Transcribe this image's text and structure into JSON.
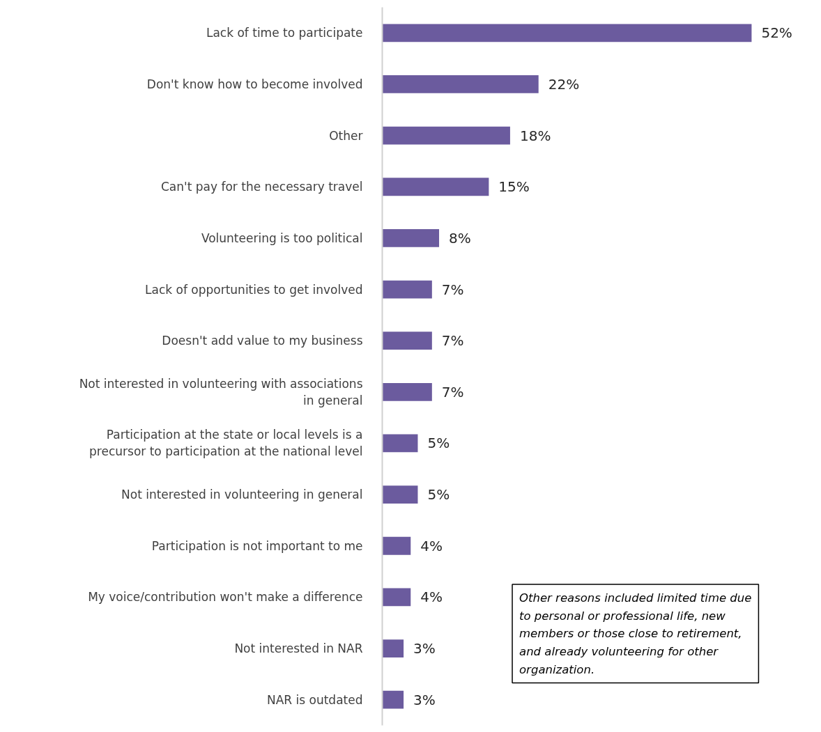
{
  "chart_data": {
    "type": "bar",
    "orientation": "horizontal",
    "tick_labels": "y",
    "categories": [
      "Lack of time to participate",
      "Don't know how to become involved",
      "Other",
      "Can't pay for the necessary travel",
      "Volunteering is too political",
      "Lack of opportunities to get involved",
      "Doesn't add value to my business",
      "Not interested in volunteering with associations in general",
      "Participation at the state or local levels is a precursor to participation at the national level",
      "Not interested in volunteering in general",
      "Participation is not important to me",
      "My voice/contribution won't make a difference",
      "Not interested in NAR",
      "NAR is outdated"
    ],
    "values": [
      52,
      22,
      18,
      15,
      8,
      7,
      7,
      7,
      5,
      5,
      4,
      4,
      3,
      3
    ],
    "color": "#6b5b9e",
    "value_labels": [
      "52%",
      "22%",
      "18%",
      "15%",
      "8%",
      "7%",
      "7%",
      "7%",
      "5%",
      "5%",
      "4%",
      "4%",
      "3%",
      "3%"
    ],
    "annotations": [
      "Other reasons included limited time due to personal or professional life, new members or those close to retirement, and already volunteering for other organization."
    ]
  }
}
